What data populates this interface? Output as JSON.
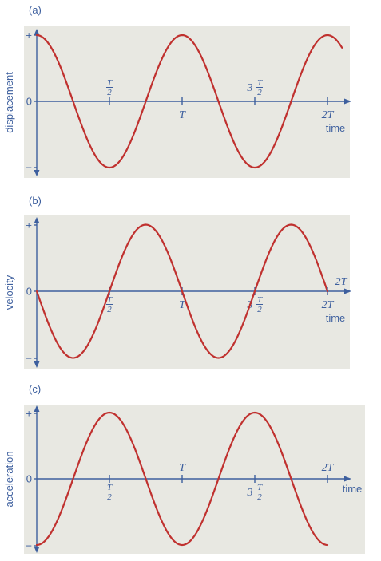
{
  "chart_data": [
    {
      "type": "line",
      "panel": "(a)",
      "function": "cos",
      "xlabel": "time",
      "ylabel": "displacement",
      "y_tick_labels": [
        "+",
        "0",
        "−"
      ],
      "x_ticks": [
        {
          "value": 0.5,
          "label": "T/2",
          "placement": "above"
        },
        {
          "value": 1.0,
          "label": "T",
          "placement": "below"
        },
        {
          "value": 1.5,
          "label": "3T/2",
          "placement": "above"
        },
        {
          "value": 2.0,
          "label": "2T",
          "placement": "below"
        }
      ],
      "xlim": [
        0,
        2.1
      ],
      "ylim": [
        -1,
        1
      ],
      "series": [
        {
          "x": [
            0,
            0.25,
            0.5,
            0.75,
            1.0,
            1.25,
            1.5,
            1.75,
            2.0
          ],
          "y": [
            1,
            0,
            -1,
            0,
            1,
            0,
            -1,
            0,
            1
          ]
        }
      ]
    },
    {
      "type": "line",
      "panel": "(b)",
      "function": "-sin",
      "xlabel": "time",
      "ylabel": "velocity",
      "y_tick_labels": [
        "+",
        "0",
        "−"
      ],
      "extra_axis_label": "2T",
      "x_ticks": [
        {
          "value": 0.5,
          "label": "T/2",
          "placement": "below"
        },
        {
          "value": 1.0,
          "label": "T",
          "placement": "below"
        },
        {
          "value": 1.5,
          "label": "3T/2",
          "placement": "below"
        },
        {
          "value": 2.0,
          "label": "2T",
          "placement": "below"
        }
      ],
      "xlim": [
        0,
        2.1
      ],
      "ylim": [
        -1,
        1
      ],
      "series": [
        {
          "x": [
            0,
            0.25,
            0.5,
            0.75,
            1.0,
            1.25,
            1.5,
            1.75,
            2.0
          ],
          "y": [
            0,
            -1,
            0,
            1,
            0,
            -1,
            0,
            1,
            0
          ]
        }
      ]
    },
    {
      "type": "line",
      "panel": "(c)",
      "function": "-cos",
      "xlabel": "time",
      "ylabel": "acceleration",
      "y_tick_labels": [
        "+",
        "0",
        "−"
      ],
      "x_ticks": [
        {
          "value": 0.5,
          "label": "T/2",
          "placement": "below"
        },
        {
          "value": 1.0,
          "label": "T",
          "placement": "above"
        },
        {
          "value": 1.5,
          "label": "3T/2",
          "placement": "below"
        },
        {
          "value": 2.0,
          "label": "2T",
          "placement": "above"
        }
      ],
      "xlim": [
        0,
        2.1
      ],
      "ylim": [
        -1,
        1
      ],
      "series": [
        {
          "x": [
            0,
            0.25,
            0.5,
            0.75,
            1.0,
            1.25,
            1.5,
            1.75,
            2.0
          ],
          "y": [
            -1,
            0,
            1,
            0,
            -1,
            0,
            1,
            0,
            -1
          ]
        }
      ]
    }
  ],
  "colors": {
    "curve": "#c0312f",
    "axis": "#3d5f9e",
    "plot_background": "#e8e8e2"
  }
}
